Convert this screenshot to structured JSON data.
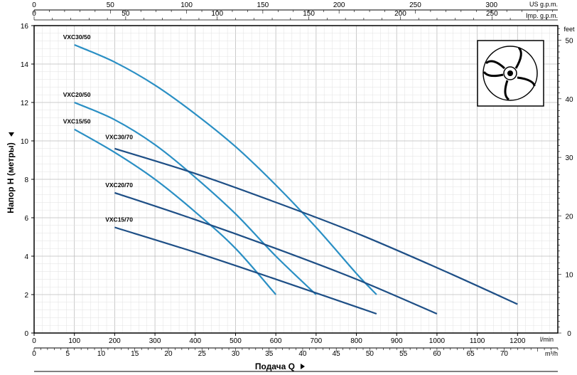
{
  "chart_data": {
    "type": "line",
    "xlabel": "Подача Q",
    "ylabel": "Напор H (метры)",
    "xlim": [
      0,
      1300
    ],
    "ylim": [
      0,
      16
    ],
    "x_unit": "l/min",
    "x_ticks": [
      0,
      100,
      200,
      300,
      400,
      500,
      600,
      700,
      800,
      900,
      1000,
      1100,
      1200
    ],
    "y_ticks": [
      0,
      2,
      4,
      6,
      8,
      10,
      12,
      14,
      16
    ],
    "grid": true,
    "secondary_axes": {
      "m3h": {
        "label": "m³/h",
        "ticks": [
          0,
          5,
          10,
          15,
          20,
          25,
          30,
          35,
          40,
          45,
          50,
          55,
          60,
          65,
          70
        ]
      },
      "us_gpm": {
        "label": "US g.p.m.",
        "ticks": [
          0,
          50,
          100,
          150,
          200,
          250,
          300
        ]
      },
      "imp_gpm": {
        "label": "Imp. g.p.m.",
        "ticks": [
          0,
          50,
          100,
          150,
          200,
          250
        ]
      },
      "feet": {
        "label": "feet",
        "ticks": [
          0,
          10,
          20,
          30,
          40,
          50
        ]
      }
    },
    "series": [
      {
        "name": "VXC30/50",
        "color": "#2a8fc4",
        "x": [
          100,
          200,
          300,
          400,
          500,
          600,
          700,
          800,
          850
        ],
        "y": [
          15,
          14.1,
          12.9,
          11.4,
          9.7,
          7.7,
          5.5,
          3.1,
          2
        ]
      },
      {
        "name": "VXC20/50",
        "color": "#2a8fc4",
        "x": [
          100,
          200,
          300,
          400,
          500,
          600,
          700
        ],
        "y": [
          12,
          11.1,
          9.8,
          8.1,
          6.2,
          4,
          2
        ]
      },
      {
        "name": "VXC15/50",
        "color": "#2a8fc4",
        "x": [
          100,
          200,
          300,
          400,
          500,
          600
        ],
        "y": [
          10.6,
          9.4,
          8,
          6.3,
          4.4,
          2
        ]
      },
      {
        "name": "VXC30/70",
        "color": "#1e4f86",
        "x": [
          200,
          400,
          600,
          800,
          1000,
          1200
        ],
        "y": [
          9.6,
          8.3,
          6.8,
          5.2,
          3.4,
          1.5
        ]
      },
      {
        "name": "VXC20/70",
        "color": "#1e4f86",
        "x": [
          200,
          400,
          600,
          800,
          1000
        ],
        "y": [
          7.3,
          5.9,
          4.4,
          2.8,
          1
        ]
      },
      {
        "name": "VXC15/70",
        "color": "#1e4f86",
        "x": [
          200,
          400,
          600,
          850
        ],
        "y": [
          5.5,
          4.2,
          2.8,
          1
        ]
      }
    ],
    "label_positions_data": [
      [
        100,
        15.3
      ],
      [
        100,
        12.3
      ],
      [
        100,
        10.9
      ],
      [
        205,
        10.1
      ],
      [
        205,
        7.6
      ],
      [
        205,
        5.8
      ]
    ]
  }
}
